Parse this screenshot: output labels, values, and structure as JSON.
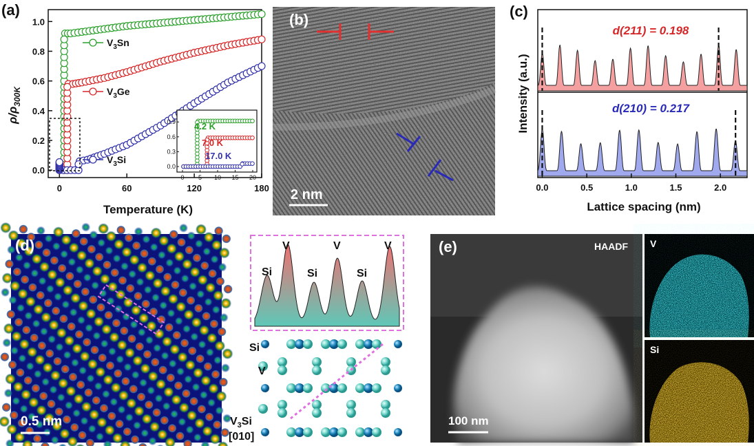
{
  "panels": {
    "a": {
      "label": "(a)",
      "ylabel": "ρ/ρ",
      "ylabel_sub": "300K",
      "xlabel": "Temperature (K)",
      "xticks": [
        "0",
        "60",
        "120",
        "180"
      ],
      "yticks": [
        "0.0",
        "0.2",
        "0.4",
        "0.6",
        "0.8",
        "1.0"
      ],
      "legend": [
        {
          "name": "V",
          "sub": "3",
          "suffix": "Sn",
          "color": "#2ca02c"
        },
        {
          "name": "V",
          "sub": "3",
          "suffix": "Ge",
          "color": "#d62728"
        },
        {
          "name": "V",
          "sub": "3",
          "suffix": "Si",
          "color": "#3333aa"
        }
      ],
      "inset": {
        "xticks": [
          "0",
          "5",
          "10",
          "15",
          "20"
        ],
        "yticks": [
          "0.0",
          "0.3",
          "0.6",
          "0.9"
        ],
        "labels": [
          {
            "text": "4.2 K",
            "color": "#2ca02c"
          },
          {
            "text": "7.0 K",
            "color": "#d62728"
          },
          {
            "text": "17.0 K",
            "color": "#3333aa"
          }
        ]
      }
    },
    "b": {
      "label": "(b)",
      "scalebar": "2 nm"
    },
    "c": {
      "label": "(c)",
      "ylabel": "Intensity (a.u.)",
      "xlabel": "Lattice spacing (nm)",
      "xticks": [
        "0.0",
        "0.5",
        "1.0",
        "1.5",
        "2.0"
      ],
      "top_label": "d(211) = 0.198",
      "bottom_label": "d(210) = 0.217"
    },
    "d": {
      "label": "(d)",
      "scalebar": "0.5 nm",
      "profile_labels": [
        "Si",
        "V",
        "Si",
        "V",
        "Si",
        "V"
      ],
      "struct_labels": {
        "si": "Si",
        "v": "V",
        "compound": "V",
        "compound_sub": "3",
        "compound_suffix": "Si",
        "zone": "[010]"
      }
    },
    "e": {
      "label": "(e)",
      "haadf": "HAADF",
      "scalebar": "100 nm",
      "map_v": "V",
      "map_si": "Si"
    }
  },
  "chart_data": [
    {
      "type": "scatter",
      "xlabel": "Temperature (K)",
      "ylabel": "ρ/ρ300K",
      "xlim": [
        -10,
        180
      ],
      "ylim": [
        -0.05,
        1.08
      ],
      "series": [
        {
          "name": "V3Sn",
          "x": [
            0,
            4.2,
            5,
            10,
            20,
            40,
            60,
            90,
            120,
            150,
            180
          ],
          "values": [
            0,
            0,
            0.92,
            0.92,
            0.93,
            0.95,
            0.97,
            0.99,
            1.01,
            1.03,
            1.05
          ]
        },
        {
          "name": "V3Ge",
          "x": [
            0,
            7,
            8,
            12,
            20,
            40,
            60,
            90,
            120,
            150,
            180
          ],
          "values": [
            0,
            0,
            0.58,
            0.58,
            0.59,
            0.62,
            0.66,
            0.73,
            0.79,
            0.84,
            0.88
          ]
        },
        {
          "name": "V3Si",
          "x": [
            0,
            17,
            18,
            25,
            40,
            60,
            90,
            120,
            150,
            180
          ],
          "values": [
            0,
            0,
            0.06,
            0.07,
            0.11,
            0.17,
            0.3,
            0.45,
            0.59,
            0.7
          ]
        }
      ]
    },
    {
      "type": "line",
      "xlabel": "Lattice spacing (nm)",
      "ylabel": "Intensity (a.u.)",
      "xlim": [
        -0.05,
        2.3
      ],
      "series": [
        {
          "name": "d(211) = 0.198",
          "period": 0.198,
          "color": "#f4a0a0"
        },
        {
          "name": "d(210) = 0.217",
          "period": 0.217,
          "color": "#a0a8ee"
        }
      ]
    }
  ]
}
